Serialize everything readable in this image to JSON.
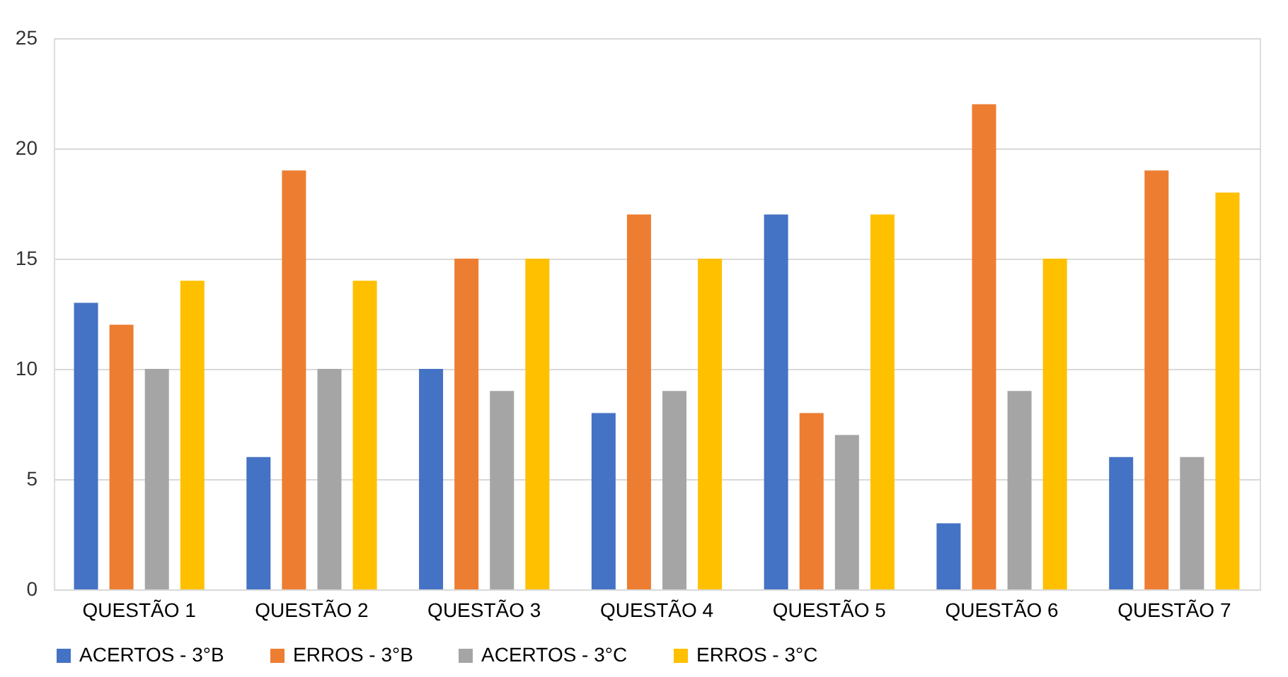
{
  "chart_data": {
    "type": "bar",
    "categories": [
      "QUESTÃO 1",
      "QUESTÃO 2",
      "QUESTÃO 3",
      "QUESTÃO 4",
      "QUESTÃO 5",
      "QUESTÃO 6",
      "QUESTÃO 7"
    ],
    "series": [
      {
        "name": "ACERTOS - 3°B",
        "color": "#4472c4",
        "values": [
          13,
          6,
          10,
          8,
          17,
          3,
          6
        ]
      },
      {
        "name": "ERROS - 3°B",
        "color": "#ed7d31",
        "values": [
          12,
          19,
          15,
          17,
          8,
          22,
          19
        ]
      },
      {
        "name": "ACERTOS - 3°C",
        "color": "#a5a5a5",
        "values": [
          10,
          10,
          9,
          9,
          7,
          9,
          6
        ]
      },
      {
        "name": "ERROS - 3°C",
        "color": "#ffc000",
        "values": [
          14,
          14,
          15,
          15,
          17,
          15,
          18
        ]
      }
    ],
    "ylim": [
      0,
      25
    ],
    "yticks": [
      0,
      5,
      10,
      15,
      20,
      25
    ],
    "grid": "y",
    "legend": "bottom"
  }
}
